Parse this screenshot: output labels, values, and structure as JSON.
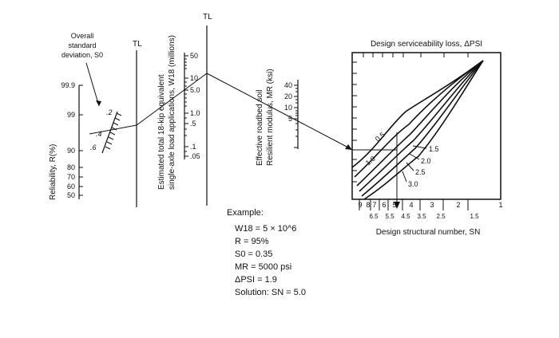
{
  "diagram": {
    "std_dev_label": [
      "Overall",
      "standard",
      "deviation, S0"
    ],
    "std_dev_ticks": [
      ".2",
      ".4",
      ".6"
    ],
    "reliability_label": "Reliability, R(%)",
    "reliability_ticks": [
      "99.9",
      "99",
      "90",
      "80",
      "70",
      "60",
      "50"
    ],
    "tl_label": "TL",
    "w18_label": [
      "Estimated total 18-kip equivalent",
      "single-axle load applications, W18 (millions)"
    ],
    "w18_ticks": [
      "50",
      "10",
      "5.0",
      "1.0",
      ".5",
      ".1",
      ".05"
    ],
    "mr_label": [
      "Effective roadbed soil",
      "Resilient modulus, MR (ksi)"
    ],
    "mr_ticks": [
      "40",
      "20",
      "10",
      "5"
    ],
    "psi_title": "Design serviceability loss, ΔPSI",
    "psi_curves": [
      "0.5",
      "1.0",
      "1.5",
      "2.0",
      "2.5",
      "3.0"
    ],
    "sn_major_ticks": [
      "9",
      "8",
      "7",
      "6",
      "5",
      "4",
      "3",
      "2",
      "1"
    ],
    "sn_minor_ticks": [
      "6.5",
      "5.5",
      "4.5",
      "3.5",
      "2.5",
      "1.5"
    ],
    "sn_label": "Design structural number, SN"
  },
  "example": {
    "heading": "Example:",
    "w18": "W18 = 5 × 10^6",
    "reliability": "R = 95%",
    "std_dev": "S0 = 0.35",
    "mr": "MR = 5000 psi",
    "delta_psi": "ΔPSI = 1.9",
    "solution": "Solution: SN = 5.0"
  }
}
